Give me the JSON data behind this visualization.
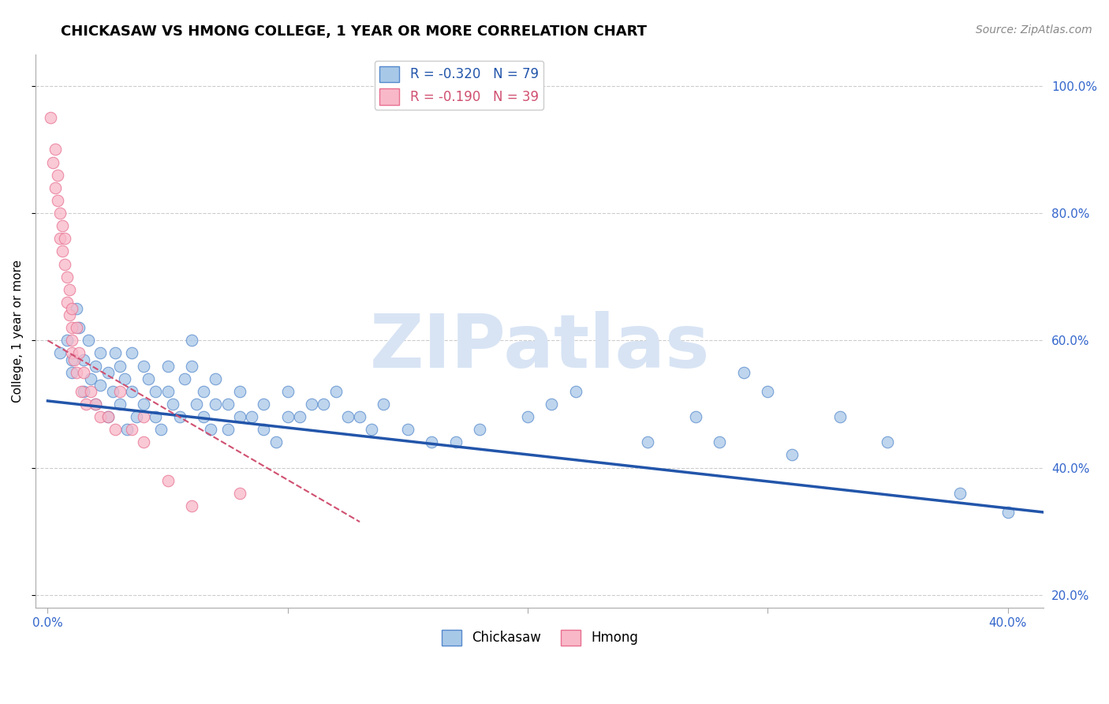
{
  "title": "CHICKASAW VS HMONG COLLEGE, 1 YEAR OR MORE CORRELATION CHART",
  "source_text": "Source: ZipAtlas.com",
  "ylabel": "College, 1 year or more",
  "xlim": [
    -0.005,
    0.415
  ],
  "ylim": [
    0.18,
    1.05
  ],
  "xtick_vals": [
    0.0,
    0.1,
    0.2,
    0.3,
    0.4
  ],
  "xtick_labels": [
    "0.0%",
    "",
    "",
    "",
    "40.0%"
  ],
  "ytick_vals": [
    0.2,
    0.4,
    0.6,
    0.8,
    1.0
  ],
  "ytick_labels": [
    "20.0%",
    "40.0%",
    "60.0%",
    "80.0%",
    "100.0%"
  ],
  "chickasaw_R": -0.32,
  "chickasaw_N": 79,
  "hmong_R": -0.19,
  "hmong_N": 39,
  "blue_color": "#A8C8E8",
  "blue_edge_color": "#5588CC",
  "blue_line_color": "#2255AA",
  "pink_color": "#F8B8C8",
  "pink_edge_color": "#E87090",
  "pink_line_color": "#D05070",
  "title_fontsize": 13,
  "source_fontsize": 10,
  "axis_label_fontsize": 11,
  "tick_fontsize": 11,
  "legend_fontsize": 12,
  "watermark_text": "ZIPatlas",
  "watermark_color": "#D8E4F4",
  "grid_color": "#CCCCCC",
  "chickasaw_x": [
    0.005,
    0.008,
    0.01,
    0.01,
    0.012,
    0.013,
    0.015,
    0.015,
    0.017,
    0.018,
    0.02,
    0.02,
    0.022,
    0.022,
    0.025,
    0.025,
    0.027,
    0.028,
    0.03,
    0.03,
    0.032,
    0.033,
    0.035,
    0.035,
    0.037,
    0.04,
    0.04,
    0.042,
    0.045,
    0.045,
    0.047,
    0.05,
    0.05,
    0.052,
    0.055,
    0.057,
    0.06,
    0.06,
    0.062,
    0.065,
    0.065,
    0.068,
    0.07,
    0.07,
    0.075,
    0.075,
    0.08,
    0.08,
    0.085,
    0.09,
    0.09,
    0.095,
    0.1,
    0.1,
    0.105,
    0.11,
    0.115,
    0.12,
    0.125,
    0.13,
    0.135,
    0.14,
    0.15,
    0.16,
    0.17,
    0.18,
    0.2,
    0.21,
    0.22,
    0.25,
    0.27,
    0.28,
    0.3,
    0.31,
    0.33,
    0.35,
    0.38,
    0.4,
    0.29
  ],
  "chickasaw_y": [
    0.58,
    0.6,
    0.57,
    0.55,
    0.65,
    0.62,
    0.57,
    0.52,
    0.6,
    0.54,
    0.56,
    0.5,
    0.58,
    0.53,
    0.48,
    0.55,
    0.52,
    0.58,
    0.5,
    0.56,
    0.54,
    0.46,
    0.58,
    0.52,
    0.48,
    0.56,
    0.5,
    0.54,
    0.48,
    0.52,
    0.46,
    0.52,
    0.56,
    0.5,
    0.48,
    0.54,
    0.56,
    0.6,
    0.5,
    0.48,
    0.52,
    0.46,
    0.5,
    0.54,
    0.5,
    0.46,
    0.48,
    0.52,
    0.48,
    0.46,
    0.5,
    0.44,
    0.48,
    0.52,
    0.48,
    0.5,
    0.5,
    0.52,
    0.48,
    0.48,
    0.46,
    0.5,
    0.46,
    0.44,
    0.44,
    0.46,
    0.48,
    0.5,
    0.52,
    0.44,
    0.48,
    0.44,
    0.52,
    0.42,
    0.48,
    0.44,
    0.36,
    0.33,
    0.55
  ],
  "hmong_x": [
    0.001,
    0.002,
    0.003,
    0.003,
    0.004,
    0.004,
    0.005,
    0.005,
    0.006,
    0.006,
    0.007,
    0.007,
    0.008,
    0.008,
    0.009,
    0.009,
    0.01,
    0.01,
    0.01,
    0.01,
    0.011,
    0.012,
    0.012,
    0.013,
    0.014,
    0.015,
    0.016,
    0.018,
    0.02,
    0.022,
    0.025,
    0.028,
    0.03,
    0.035,
    0.04,
    0.04,
    0.05,
    0.06,
    0.08
  ],
  "hmong_y": [
    0.95,
    0.88,
    0.84,
    0.9,
    0.82,
    0.86,
    0.8,
    0.76,
    0.78,
    0.74,
    0.72,
    0.76,
    0.7,
    0.66,
    0.68,
    0.64,
    0.62,
    0.58,
    0.65,
    0.6,
    0.57,
    0.62,
    0.55,
    0.58,
    0.52,
    0.55,
    0.5,
    0.52,
    0.5,
    0.48,
    0.48,
    0.46,
    0.52,
    0.46,
    0.44,
    0.48,
    0.38,
    0.34,
    0.36
  ],
  "blue_trendline_x": [
    0.0,
    0.415
  ],
  "blue_trendline_y": [
    0.505,
    0.33
  ],
  "pink_trendline_x": [
    0.0,
    0.13
  ],
  "pink_trendline_y": [
    0.6,
    0.315
  ]
}
